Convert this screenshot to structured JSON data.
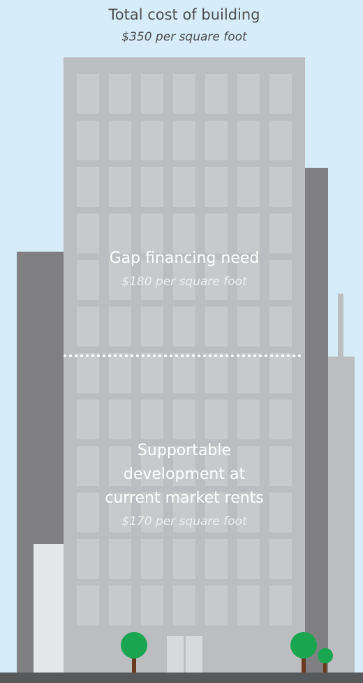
{
  "header": {
    "title": "Total cost of building",
    "subtitle": "$350 per square foot"
  },
  "sections": [
    {
      "lines": [
        "Gap financing need"
      ],
      "note": "$180 per square foot"
    },
    {
      "lines": [
        "Supportable",
        "development at",
        "current market rents"
      ],
      "note": "$170 per square foot"
    }
  ]
}
